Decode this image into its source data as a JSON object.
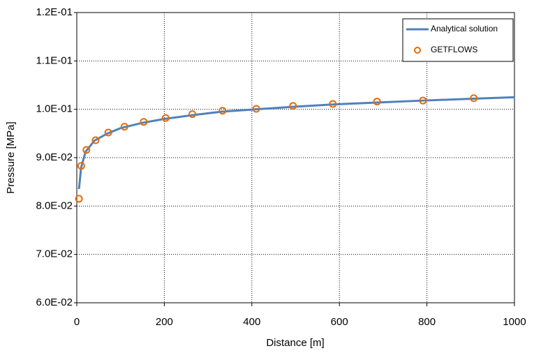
{
  "chart_data": {
    "type": "line",
    "xlabel": "Distance [m]",
    "ylabel": "Pressure [MPa]",
    "xlim": [
      0,
      1000
    ],
    "xticks": [
      0,
      200,
      400,
      600,
      800,
      1000
    ],
    "ylim": [
      0.06,
      0.12
    ],
    "yticks": [
      {
        "value": 0.06,
        "label": "6.0E-02"
      },
      {
        "value": 0.07,
        "label": "7.0E-02"
      },
      {
        "value": 0.08,
        "label": "8.0E-02"
      },
      {
        "value": 0.09,
        "label": "9.0E-02"
      },
      {
        "value": 0.1,
        "label": "1.0E-01"
      },
      {
        "value": 0.11,
        "label": "1.1E-01"
      },
      {
        "value": 0.12,
        "label": "1.2E-01"
      }
    ],
    "grid": true,
    "legend": "upper right",
    "series": [
      {
        "name": "Analytical solution",
        "color": "#4f81bd",
        "marker": "line",
        "x": [
          5,
          10,
          20,
          40,
          70,
          100,
          150,
          200,
          265,
          330,
          410,
          490,
          585,
          685,
          790,
          910,
          1000
        ],
        "values": [
          0.0835,
          0.088,
          0.0912,
          0.0935,
          0.095,
          0.0961,
          0.0972,
          0.098,
          0.0988,
          0.0995,
          0.1,
          0.1005,
          0.101,
          0.1014,
          0.1018,
          0.1022,
          0.1025
        ]
      },
      {
        "name": "GETFLOWS",
        "color": "#e36c0a",
        "marker": "circle",
        "x": [
          5,
          10,
          22,
          43,
          72,
          109,
          153,
          203,
          264,
          333,
          410,
          494,
          585,
          686,
          791,
          907
        ],
        "values": [
          0.0815,
          0.0883,
          0.0916,
          0.0936,
          0.0952,
          0.0964,
          0.0974,
          0.0982,
          0.099,
          0.0997,
          0.1001,
          0.1007,
          0.1011,
          0.1016,
          0.1018,
          0.1023
        ]
      }
    ]
  }
}
